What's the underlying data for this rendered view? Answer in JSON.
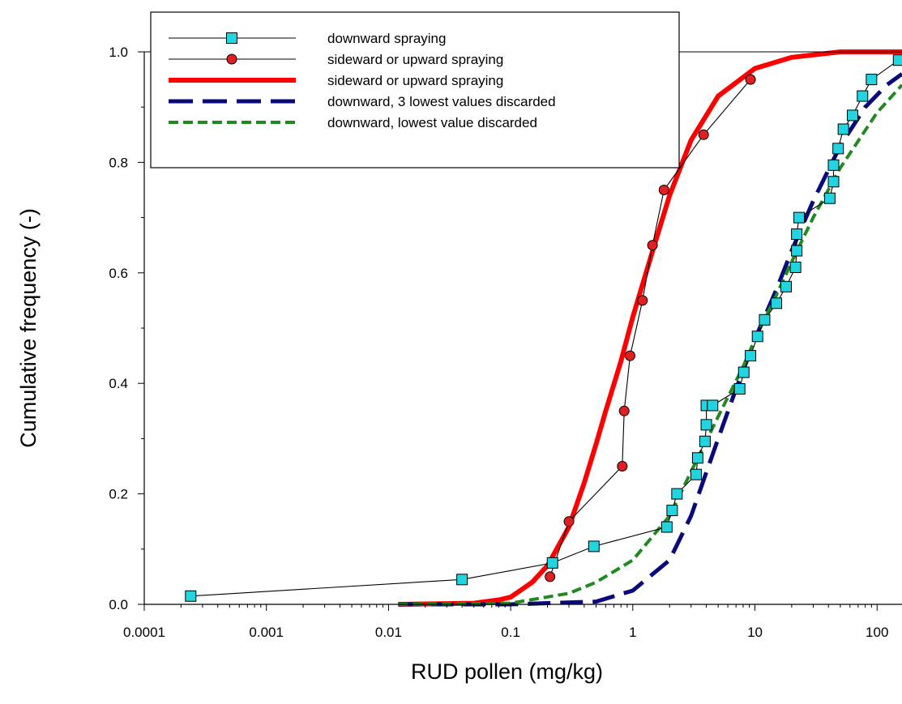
{
  "chart_data": {
    "type": "line",
    "xlabel": "RUD pollen (mg/kg)",
    "ylabel": "Cumulative frequency (-)",
    "xscale": "log",
    "xlim": [
      0.0001,
      160
    ],
    "ylim": [
      0,
      1.0
    ],
    "xticks": [
      {
        "value": 0.0001,
        "label": "0.0001"
      },
      {
        "value": 0.001,
        "label": "0.001"
      },
      {
        "value": 0.01,
        "label": "0.01"
      },
      {
        "value": 0.1,
        "label": "0.1"
      },
      {
        "value": 1,
        "label": "1"
      },
      {
        "value": 10,
        "label": "10"
      },
      {
        "value": 100,
        "label": "100"
      }
    ],
    "yticks": [
      {
        "value": 0,
        "label": "0.0"
      },
      {
        "value": 0.2,
        "label": "0.2"
      },
      {
        "value": 0.4,
        "label": "0.4"
      },
      {
        "value": 0.6,
        "label": "0.6"
      },
      {
        "value": 0.8,
        "label": "0.8"
      },
      {
        "value": 1.0,
        "label": "1.0"
      }
    ],
    "grid": false,
    "legend_position": "top-left",
    "series": [
      {
        "name": "downward spraying",
        "style": "line-square-marker",
        "color": "#000000",
        "marker_color": "#22d3e0",
        "points": [
          [
            0.00024,
            0.015
          ],
          [
            0.04,
            0.045
          ],
          [
            0.22,
            0.075
          ],
          [
            0.48,
            0.105
          ],
          [
            1.9,
            0.14
          ],
          [
            2.1,
            0.17
          ],
          [
            2.3,
            0.2
          ],
          [
            3.3,
            0.235
          ],
          [
            3.4,
            0.265
          ],
          [
            3.9,
            0.295
          ],
          [
            4.0,
            0.325
          ],
          [
            4.0,
            0.36
          ],
          [
            4.5,
            0.36
          ],
          [
            7.5,
            0.39
          ],
          [
            8.1,
            0.42
          ],
          [
            9.2,
            0.45
          ],
          [
            10.5,
            0.485
          ],
          [
            12.0,
            0.515
          ],
          [
            15.0,
            0.545
          ],
          [
            18.0,
            0.575
          ],
          [
            21.5,
            0.61
          ],
          [
            22.0,
            0.64
          ],
          [
            22.0,
            0.67
          ],
          [
            23.0,
            0.7
          ],
          [
            41.0,
            0.735
          ],
          [
            44.0,
            0.765
          ],
          [
            44.0,
            0.795
          ],
          [
            48.0,
            0.825
          ],
          [
            53.0,
            0.86
          ],
          [
            63.0,
            0.885
          ],
          [
            76.0,
            0.92
          ],
          [
            90.0,
            0.95
          ],
          [
            150.0,
            0.985
          ]
        ]
      },
      {
        "name": "sideward or upward spraying",
        "style": "line-circle-marker",
        "color": "#000000",
        "marker_color": "#e02020",
        "points": [
          [
            0.21,
            0.05
          ],
          [
            0.3,
            0.15
          ],
          [
            0.82,
            0.25
          ],
          [
            0.85,
            0.35
          ],
          [
            0.95,
            0.45
          ],
          [
            1.2,
            0.55
          ],
          [
            1.45,
            0.65
          ],
          [
            1.8,
            0.75
          ],
          [
            3.8,
            0.85
          ],
          [
            9.2,
            0.95
          ]
        ]
      },
      {
        "name": "sideward or upward spraying",
        "style": "thick-solid",
        "color": "#ff0000",
        "points": [
          [
            0.012,
            0.0
          ],
          [
            0.05,
            0.002
          ],
          [
            0.08,
            0.008
          ],
          [
            0.1,
            0.013
          ],
          [
            0.15,
            0.04
          ],
          [
            0.2,
            0.07
          ],
          [
            0.3,
            0.14
          ],
          [
            0.4,
            0.22
          ],
          [
            0.5,
            0.29
          ],
          [
            0.6,
            0.35
          ],
          [
            0.8,
            0.44
          ],
          [
            1.0,
            0.52
          ],
          [
            1.5,
            0.65
          ],
          [
            2.0,
            0.74
          ],
          [
            3.0,
            0.84
          ],
          [
            5.0,
            0.92
          ],
          [
            10.0,
            0.97
          ],
          [
            20.0,
            0.99
          ],
          [
            50.0,
            1.0
          ],
          [
            160.0,
            1.0
          ]
        ]
      },
      {
        "name": "downward, 3 lowest values discarded",
        "style": "long-dash",
        "color": "#0a0a7a",
        "points": [
          [
            0.012,
            0.0
          ],
          [
            0.1,
            0.0
          ],
          [
            0.5,
            0.005
          ],
          [
            1.0,
            0.025
          ],
          [
            2.0,
            0.08
          ],
          [
            3.0,
            0.16
          ],
          [
            5.0,
            0.3
          ],
          [
            7.0,
            0.39
          ],
          [
            10.0,
            0.48
          ],
          [
            15.0,
            0.57
          ],
          [
            20.0,
            0.64
          ],
          [
            30.0,
            0.73
          ],
          [
            50.0,
            0.83
          ],
          [
            80.0,
            0.9
          ],
          [
            120.0,
            0.94
          ],
          [
            160.0,
            0.96
          ]
        ]
      },
      {
        "name": "downward, lowest value discarded",
        "style": "dash",
        "color": "#1f8a1f",
        "points": [
          [
            0.012,
            0.0
          ],
          [
            0.1,
            0.002
          ],
          [
            0.3,
            0.02
          ],
          [
            0.5,
            0.04
          ],
          [
            1.0,
            0.08
          ],
          [
            2.0,
            0.16
          ],
          [
            3.0,
            0.24
          ],
          [
            5.0,
            0.34
          ],
          [
            8.0,
            0.43
          ],
          [
            10.0,
            0.48
          ],
          [
            15.0,
            0.56
          ],
          [
            20.0,
            0.62
          ],
          [
            30.0,
            0.7
          ],
          [
            50.0,
            0.79
          ],
          [
            100.0,
            0.89
          ],
          [
            160.0,
            0.94
          ]
        ]
      }
    ]
  }
}
